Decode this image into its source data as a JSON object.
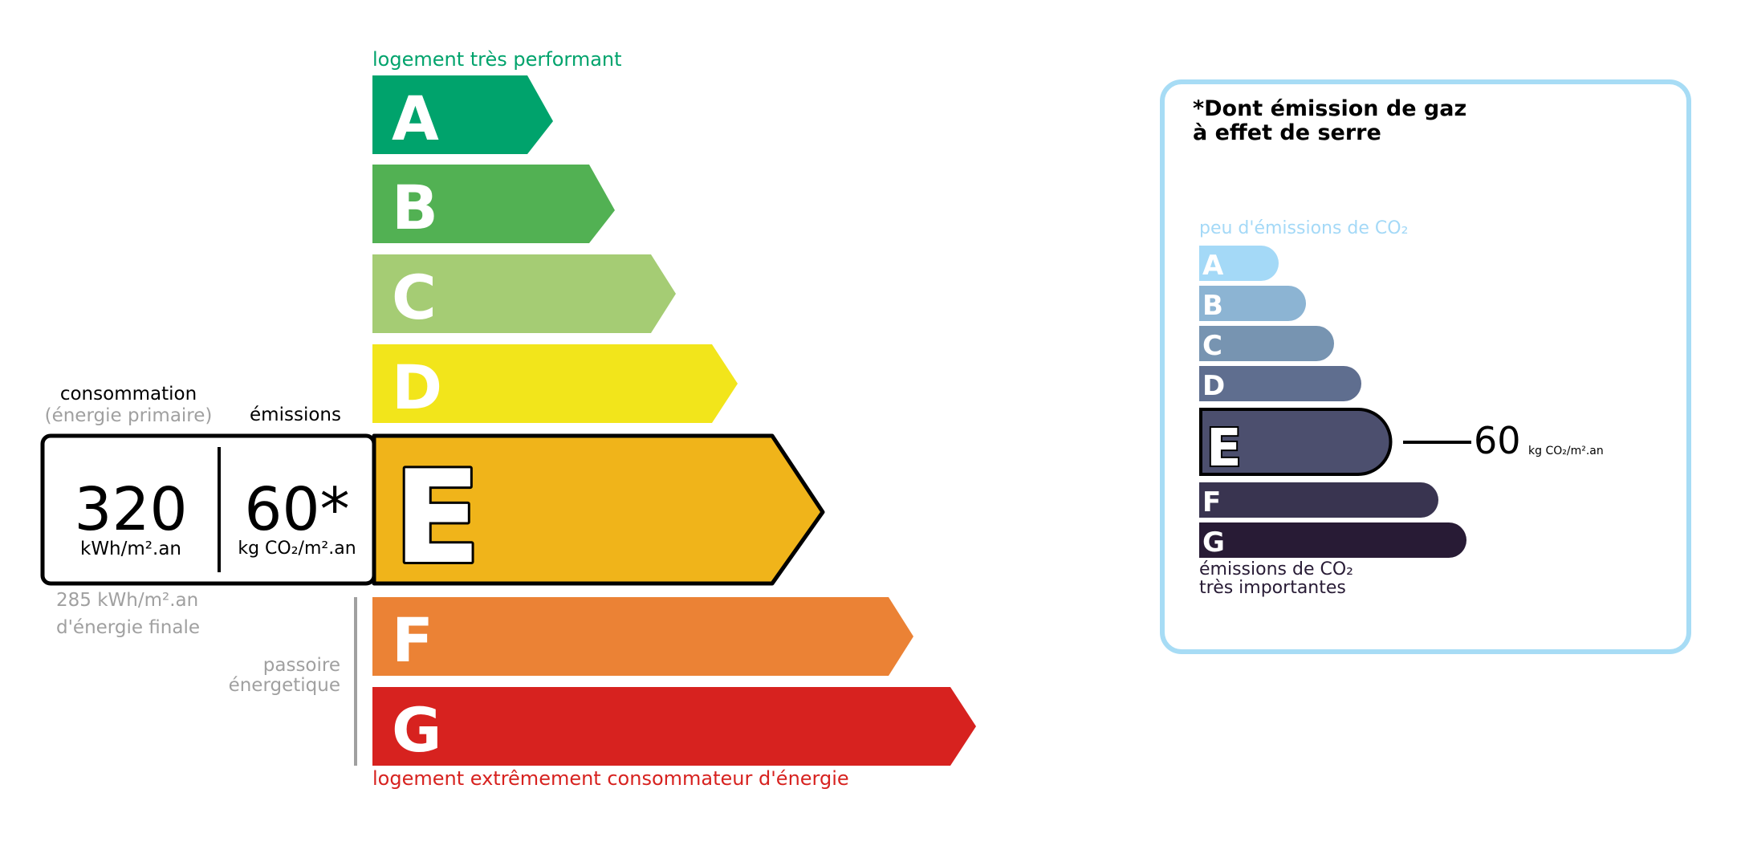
{
  "energy_label": {
    "top_caption": "logement très performant",
    "bottom_caption": "logement extrêmement consommateur d'énergie",
    "classes": [
      {
        "letter": "A",
        "color": "#00a36c"
      },
      {
        "letter": "B",
        "color": "#52b153"
      },
      {
        "letter": "C",
        "color": "#a5cc74"
      },
      {
        "letter": "D",
        "color": "#f2e51b"
      },
      {
        "letter": "E",
        "color": "#f0b41a"
      },
      {
        "letter": "F",
        "color": "#eb8235"
      },
      {
        "letter": "G",
        "color": "#d7221f"
      }
    ],
    "current_class": "E",
    "consumption_header": "consommation",
    "consumption_subheader": "(énergie primaire)",
    "emissions_header": "émissions",
    "consumption_value": "320",
    "consumption_unit": "kWh/m².an",
    "emissions_value": "60*",
    "emissions_unit": "kg CO₂/m².an",
    "final_energy_line1": "285 kWh/m².an",
    "final_energy_line2": "d'énergie finale",
    "passoire_line1": "passoire",
    "passoire_line2": "énergetique"
  },
  "ghg_panel": {
    "title_line1": "*Dont émission de gaz",
    "title_line2": "à effet de serre",
    "top_caption": "peu d'émissions de CO₂",
    "bottom_caption_line1": "émissions de CO₂",
    "bottom_caption_line2": "très importantes",
    "classes": [
      {
        "letter": "A",
        "color": "#a4d9f7"
      },
      {
        "letter": "B",
        "color": "#8cb4d3"
      },
      {
        "letter": "C",
        "color": "#7794b1"
      },
      {
        "letter": "D",
        "color": "#5f6e8f"
      },
      {
        "letter": "E",
        "color": "#4c4f6e"
      },
      {
        "letter": "F",
        "color": "#393450"
      },
      {
        "letter": "G",
        "color": "#281b35"
      }
    ],
    "current_class": "E",
    "value": "60",
    "unit": "kg CO₂/m².an",
    "border_color": "#a7dcf5"
  }
}
